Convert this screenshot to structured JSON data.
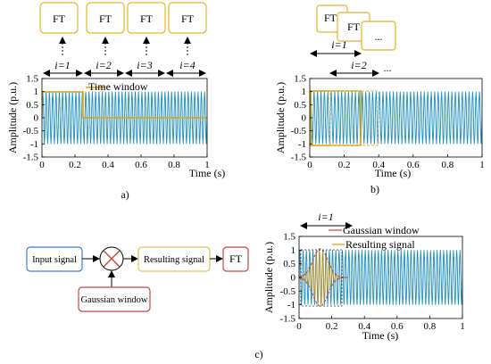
{
  "panel_a": {
    "ft_labels": [
      "FT",
      "FT",
      "FT",
      "FT"
    ],
    "index_labels": [
      "i=1",
      "i=2",
      "i=3",
      "i=4"
    ],
    "window_annotation": "Time window",
    "ylabel": "Amplitude (p.u.)",
    "xlabel": "Time (s)",
    "yticks": [
      "1.5",
      "1",
      "0.5",
      "0",
      "-0.5",
      "-1",
      "-1.5"
    ],
    "xticks": [
      "0",
      "0.2",
      "0.4",
      "0.6",
      "0.8",
      "1"
    ],
    "caption": "a)"
  },
  "panel_b": {
    "ft_labels": [
      "FT",
      "FT"
    ],
    "ellipsis_box": "...",
    "index_labels": [
      "i=1",
      "i=2"
    ],
    "index_ellipsis": "...",
    "ylabel": "Amplitude (p.u.)",
    "xlabel": "Time (s)",
    "yticks": [
      "1.5",
      "1",
      "0.5",
      "0",
      "-0.5",
      "-1",
      "-1.5"
    ],
    "xticks": [
      "0",
      "0.2",
      "0.4",
      "0.6",
      "0.8",
      "1"
    ],
    "caption": "b)"
  },
  "panel_c": {
    "input_label": "Input signal",
    "result_label": "Resulting signal",
    "ft_label": "FT",
    "gauss_label": "Gaussian window",
    "index_label": "i=1",
    "legend_gauss": "Gaussian window",
    "legend_result": "Resulting signal",
    "ylabel": "Amplitude (p.u.)",
    "xlabel": "Time (s)",
    "yticks": [
      "1.5",
      "1",
      "0.5",
      "0",
      "-0.5",
      "-1",
      "-1.5"
    ],
    "xticks": [
      "0",
      "0.2",
      "0.4",
      "0.6",
      "0.8",
      "1"
    ],
    "caption": "c)"
  },
  "colors": {
    "signal": "#1f8fc0",
    "window": "#e0a100",
    "ft_border": "#e6b422",
    "input_border": "#3b7ddd",
    "result_border": "#e6c25a",
    "gauss_border": "#c9443e",
    "ft_red_border": "#c9443e"
  }
}
